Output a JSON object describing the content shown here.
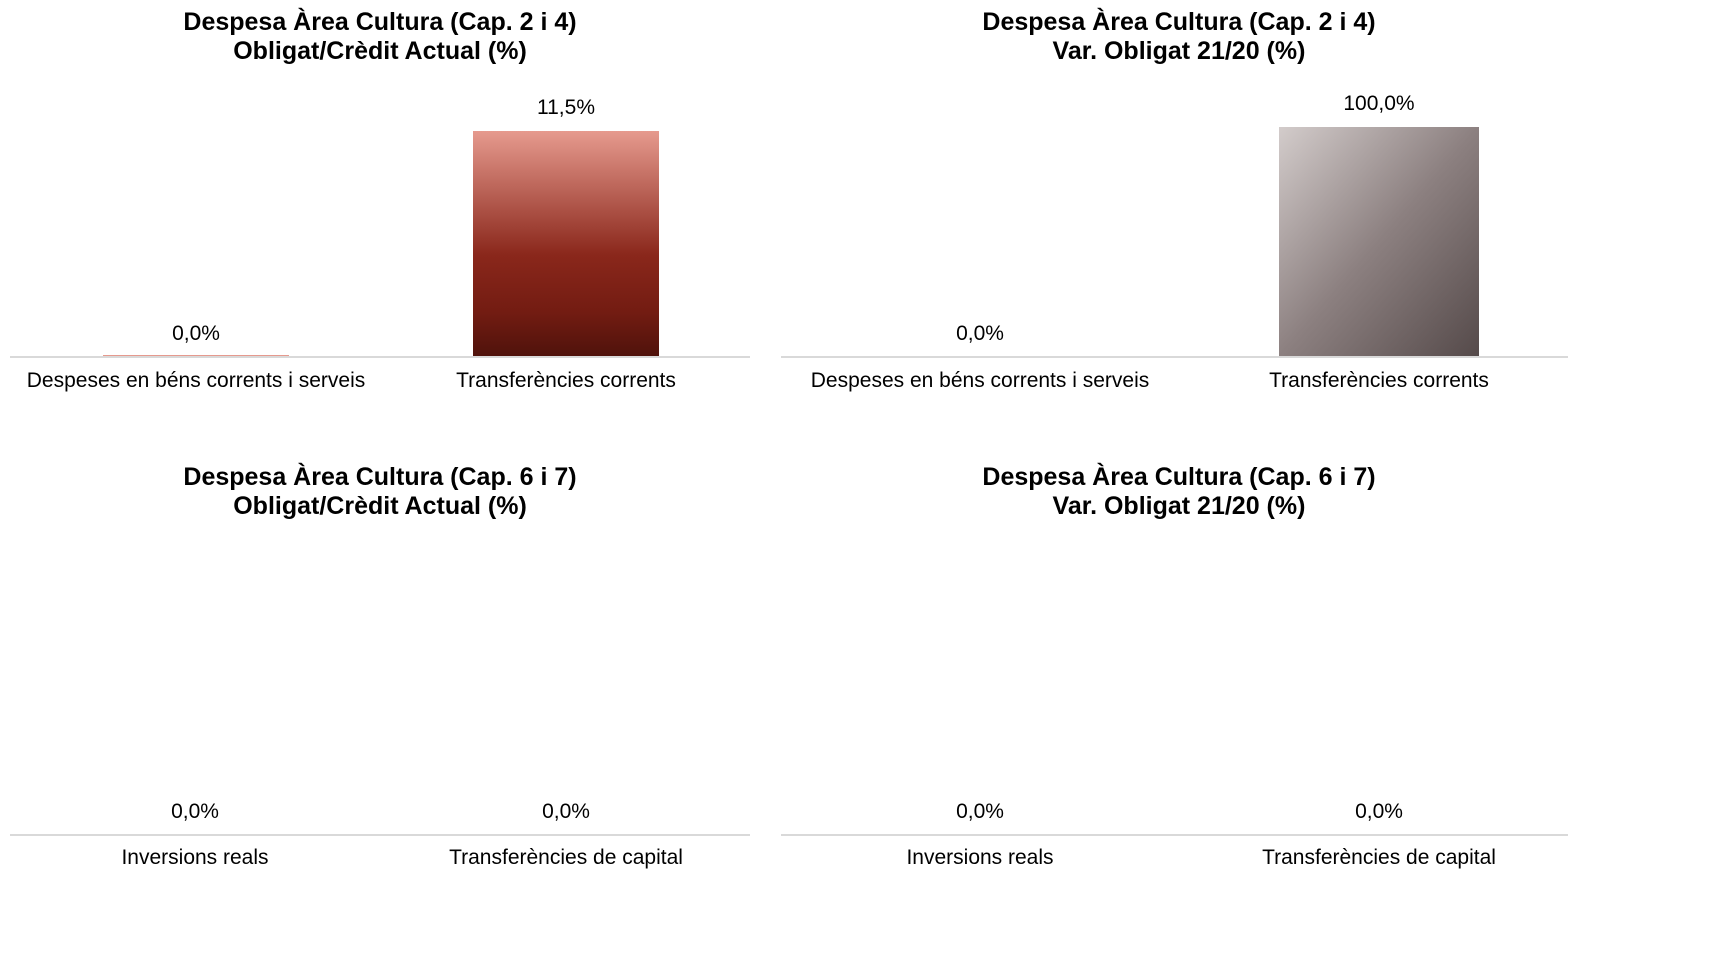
{
  "chart_data": [
    {
      "type": "bar",
      "title": "Despesa Àrea Cultura (Cap. 2 i 4)",
      "subtitle": "Obligat/Crèdit Actual (%)",
      "categories": [
        "Despeses en béns corrents i serveis",
        "Transferències corrents"
      ],
      "values": [
        0.0,
        11.5
      ],
      "data_labels": [
        "0,0%",
        "11,5%"
      ],
      "ylim": [
        0,
        11.5
      ],
      "grid": false,
      "legend": "none",
      "style": "red"
    },
    {
      "type": "bar",
      "title": "Despesa Àrea Cultura (Cap. 2 i 4)",
      "subtitle": "Var. Obligat 21/20 (%)",
      "categories": [
        "Despeses en béns corrents i serveis",
        "Transferències corrents"
      ],
      "values": [
        0.0,
        100.0
      ],
      "data_labels": [
        "0,0%",
        "100,0%"
      ],
      "ylim": [
        0,
        100
      ],
      "grid": false,
      "legend": "none",
      "style": "grey"
    },
    {
      "type": "bar",
      "title": "Despesa Àrea Cultura (Cap. 6 i 7)",
      "subtitle": "Obligat/Crèdit Actual (%)",
      "categories": [
        "Inversions reals",
        "Transferències de capital"
      ],
      "values": [
        0.0,
        0.0
      ],
      "data_labels": [
        "0,0%",
        "0,0%"
      ],
      "ylim": [
        0,
        1
      ],
      "grid": false,
      "legend": "none",
      "style": "red"
    },
    {
      "type": "bar",
      "title": "Despesa Àrea Cultura (Cap. 6 i 7)",
      "subtitle": "Var. Obligat 21/20 (%)",
      "categories": [
        "Inversions reals",
        "Transferències de capital"
      ],
      "values": [
        0.0,
        0.0
      ],
      "data_labels": [
        "0,0%",
        "0,0%"
      ],
      "ylim": [
        0,
        1
      ],
      "grid": false,
      "legend": "none",
      "style": "grey"
    }
  ],
  "colors": {
    "red_top": "#e69a8e",
    "red_mid": "#7d1f14",
    "red_bottom": "#4f120b",
    "grey_light": "#d3cccb",
    "grey_dark": "#554a4a",
    "axis": "#d9d9d9"
  }
}
